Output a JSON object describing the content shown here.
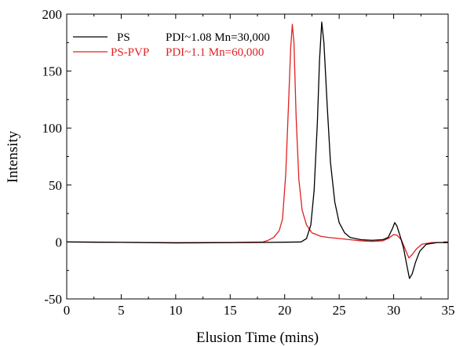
{
  "chart_data": {
    "type": "line",
    "title": "",
    "xlabel": "Elusion Time (mins)",
    "ylabel": "Intensity",
    "xlim": [
      0,
      35
    ],
    "ylim": [
      -50,
      200
    ],
    "x_ticks": [
      "0",
      "5",
      "10",
      "15",
      "20",
      "25",
      "30",
      "35"
    ],
    "y_ticks": [
      "-50",
      "0",
      "50",
      "100",
      "150",
      "200"
    ],
    "grid": false,
    "legend_position": "top-left",
    "series": [
      {
        "name": "PS",
        "legend_annotation": "PDI~1.08 Mn=30,000",
        "color": "#000000",
        "points": [
          [
            0,
            0
          ],
          [
            5,
            -0.3
          ],
          [
            10,
            -0.8
          ],
          [
            15,
            -0.6
          ],
          [
            18,
            -0.4
          ],
          [
            20,
            -0.2
          ],
          [
            21.5,
            0
          ],
          [
            22,
            3
          ],
          [
            22.4,
            15
          ],
          [
            22.7,
            45
          ],
          [
            23,
            105
          ],
          [
            23.2,
            160
          ],
          [
            23.4,
            193
          ],
          [
            23.6,
            175
          ],
          [
            23.9,
            120
          ],
          [
            24.2,
            70
          ],
          [
            24.6,
            35
          ],
          [
            25,
            17
          ],
          [
            25.5,
            8
          ],
          [
            26,
            4
          ],
          [
            27,
            2
          ],
          [
            28,
            1.5
          ],
          [
            29,
            2
          ],
          [
            29.5,
            4
          ],
          [
            29.9,
            12
          ],
          [
            30.1,
            17
          ],
          [
            30.3,
            14
          ],
          [
            30.6,
            5
          ],
          [
            30.9,
            -5
          ],
          [
            31.2,
            -20
          ],
          [
            31.45,
            -32
          ],
          [
            31.7,
            -28
          ],
          [
            32,
            -18
          ],
          [
            32.4,
            -8
          ],
          [
            33,
            -2
          ],
          [
            34,
            -0.5
          ],
          [
            35,
            -0.5
          ]
        ]
      },
      {
        "name": "PS-PVP",
        "legend_annotation": "PDI~1.1 Mn=60,000",
        "color": "#e02020",
        "points": [
          [
            0,
            0
          ],
          [
            5,
            -0.3
          ],
          [
            10,
            -0.6
          ],
          [
            15,
            -0.4
          ],
          [
            18,
            0
          ],
          [
            18.5,
            1.5
          ],
          [
            19,
            4
          ],
          [
            19.5,
            10
          ],
          [
            19.8,
            20
          ],
          [
            20.1,
            60
          ],
          [
            20.35,
            120
          ],
          [
            20.55,
            170
          ],
          [
            20.7,
            191
          ],
          [
            20.85,
            175
          ],
          [
            21.05,
            110
          ],
          [
            21.3,
            55
          ],
          [
            21.6,
            28
          ],
          [
            22,
            15
          ],
          [
            22.5,
            8
          ],
          [
            23.3,
            5
          ],
          [
            24,
            4
          ],
          [
            25,
            3
          ],
          [
            26,
            2
          ],
          [
            27,
            1
          ],
          [
            28,
            0.5
          ],
          [
            29,
            1
          ],
          [
            29.5,
            3
          ],
          [
            30,
            6.5
          ],
          [
            30.3,
            6
          ],
          [
            30.7,
            2
          ],
          [
            31,
            -5
          ],
          [
            31.4,
            -14
          ],
          [
            31.7,
            -11
          ],
          [
            32.1,
            -6
          ],
          [
            32.6,
            -2
          ],
          [
            33.5,
            -0.5
          ],
          [
            35,
            -0.5
          ]
        ]
      }
    ]
  }
}
